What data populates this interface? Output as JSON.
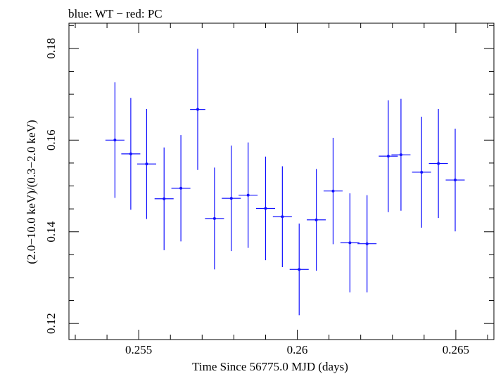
{
  "chart_data": {
    "type": "scatter",
    "title": "blue: WT − red: PC",
    "xlabel": "Time Since 56775.0 MJD (days)",
    "ylabel": "(2.0−10.0 keV)/(0.3−2.0 keV)",
    "xlim": [
      0.2528,
      0.2662
    ],
    "ylim": [
      0.1165,
      0.1855
    ],
    "xticks": [
      0.255,
      0.26,
      0.265
    ],
    "xtick_labels": [
      "0.255",
      "0.26",
      "0.265"
    ],
    "yticks": [
      0.12,
      0.14,
      0.16,
      0.18
    ],
    "ytick_labels": [
      "0.12",
      "0.14",
      "0.16",
      "0.18"
    ],
    "grid": false,
    "series": [
      {
        "color": "#1010ff",
        "points": [
          {
            "x": 0.25425,
            "xerr": 0.0003,
            "y": 0.16,
            "yerr_lo": 0.0126,
            "yerr_hi": 0.0126
          },
          {
            "x": 0.25475,
            "xerr": 0.0003,
            "y": 0.157,
            "yerr_lo": 0.0122,
            "yerr_hi": 0.0122
          },
          {
            "x": 0.25525,
            "xerr": 0.0003,
            "y": 0.1548,
            "yerr_lo": 0.012,
            "yerr_hi": 0.012
          },
          {
            "x": 0.2558,
            "xerr": 0.0003,
            "y": 0.1472,
            "yerr_lo": 0.0112,
            "yerr_hi": 0.0112
          },
          {
            "x": 0.25633,
            "xerr": 0.0003,
            "y": 0.1495,
            "yerr_lo": 0.0116,
            "yerr_hi": 0.0116
          },
          {
            "x": 0.25686,
            "xerr": 0.00024,
            "y": 0.1667,
            "yerr_lo": 0.0132,
            "yerr_hi": 0.0132
          },
          {
            "x": 0.25739,
            "xerr": 0.0003,
            "y": 0.1429,
            "yerr_lo": 0.0111,
            "yerr_hi": 0.0111
          },
          {
            "x": 0.25792,
            "xerr": 0.0003,
            "y": 0.1473,
            "yerr_lo": 0.0115,
            "yerr_hi": 0.0115
          },
          {
            "x": 0.25845,
            "xerr": 0.0003,
            "y": 0.148,
            "yerr_lo": 0.0115,
            "yerr_hi": 0.0115
          },
          {
            "x": 0.259,
            "xerr": 0.0003,
            "y": 0.1451,
            "yerr_lo": 0.0113,
            "yerr_hi": 0.0113
          },
          {
            "x": 0.25953,
            "xerr": 0.0003,
            "y": 0.1433,
            "yerr_lo": 0.011,
            "yerr_hi": 0.011
          },
          {
            "x": 0.26006,
            "xerr": 0.0003,
            "y": 0.1318,
            "yerr_lo": 0.01,
            "yerr_hi": 0.01
          },
          {
            "x": 0.2606,
            "xerr": 0.0003,
            "y": 0.1426,
            "yerr_lo": 0.0111,
            "yerr_hi": 0.0111
          },
          {
            "x": 0.26113,
            "xerr": 0.0003,
            "y": 0.1489,
            "yerr_lo": 0.0116,
            "yerr_hi": 0.0116
          },
          {
            "x": 0.26166,
            "xerr": 0.0003,
            "y": 0.1376,
            "yerr_lo": 0.0108,
            "yerr_hi": 0.0108
          },
          {
            "x": 0.2622,
            "xerr": 0.0003,
            "y": 0.1374,
            "yerr_lo": 0.0106,
            "yerr_hi": 0.0106
          },
          {
            "x": 0.26287,
            "xerr": 0.0003,
            "y": 0.1565,
            "yerr_lo": 0.0122,
            "yerr_hi": 0.0122
          },
          {
            "x": 0.26327,
            "xerr": 0.0003,
            "y": 0.1568,
            "yerr_lo": 0.0122,
            "yerr_hi": 0.0122
          },
          {
            "x": 0.26392,
            "xerr": 0.0003,
            "y": 0.153,
            "yerr_lo": 0.0121,
            "yerr_hi": 0.0121
          },
          {
            "x": 0.26445,
            "xerr": 0.0003,
            "y": 0.1549,
            "yerr_lo": 0.0119,
            "yerr_hi": 0.0119
          },
          {
            "x": 0.26498,
            "xerr": 0.0003,
            "y": 0.1513,
            "yerr_lo": 0.0112,
            "yerr_hi": 0.0112
          }
        ]
      }
    ]
  }
}
